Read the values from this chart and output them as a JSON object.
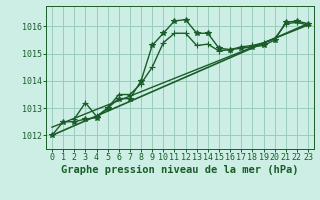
{
  "bg_color": "#cceee4",
  "grid_color": "#99ccbb",
  "line_color": "#1a5c2a",
  "xlabel": "Graphe pression niveau de la mer (hPa)",
  "xlabel_fontsize": 7.5,
  "tick_fontsize": 6,
  "ylim": [
    1011.5,
    1016.75
  ],
  "yticks": [
    1012,
    1013,
    1014,
    1015,
    1016
  ],
  "xlim": [
    -0.5,
    23.5
  ],
  "xticks": [
    0,
    1,
    2,
    3,
    4,
    5,
    6,
    7,
    8,
    9,
    10,
    11,
    12,
    13,
    14,
    15,
    16,
    17,
    18,
    19,
    20,
    21,
    22,
    23
  ],
  "series": [
    {
      "x": [
        0,
        1,
        2,
        3,
        4,
        5,
        6,
        7,
        8,
        9,
        10,
        11,
        12,
        13,
        14,
        15,
        16,
        17,
        18,
        19,
        20,
        21,
        22,
        23
      ],
      "y": [
        1012.0,
        1012.5,
        1012.5,
        1012.6,
        1012.65,
        1013.0,
        1013.35,
        1013.35,
        1014.0,
        1015.3,
        1015.75,
        1016.2,
        1016.25,
        1015.75,
        1015.75,
        1015.2,
        1015.15,
        1015.2,
        1015.25,
        1015.3,
        1015.5,
        1016.15,
        1016.2,
        1016.1
      ],
      "marker": "*",
      "lw": 1.0,
      "ms": 4,
      "style": "main"
    },
    {
      "x": [
        2,
        3,
        4,
        5,
        6,
        7,
        8,
        9,
        10,
        11,
        12,
        13,
        14,
        15,
        16,
        17,
        18,
        19,
        20,
        21,
        22,
        23
      ],
      "y": [
        1012.6,
        1013.2,
        1012.7,
        1013.0,
        1013.5,
        1013.5,
        1013.9,
        1014.5,
        1015.4,
        1015.75,
        1015.75,
        1015.3,
        1015.35,
        1015.1,
        1015.15,
        1015.25,
        1015.3,
        1015.4,
        1015.55,
        1016.1,
        1016.15,
        1016.05
      ],
      "marker": "+",
      "lw": 1.0,
      "ms": 4,
      "style": "secondary"
    },
    {
      "x": [
        0,
        23
      ],
      "y": [
        1012.0,
        1016.1
      ],
      "marker": null,
      "lw": 1.2,
      "ms": 0,
      "style": "trend"
    },
    {
      "x": [
        0,
        23
      ],
      "y": [
        1012.3,
        1016.05
      ],
      "marker": null,
      "lw": 1.0,
      "ms": 0,
      "style": "trend"
    }
  ]
}
